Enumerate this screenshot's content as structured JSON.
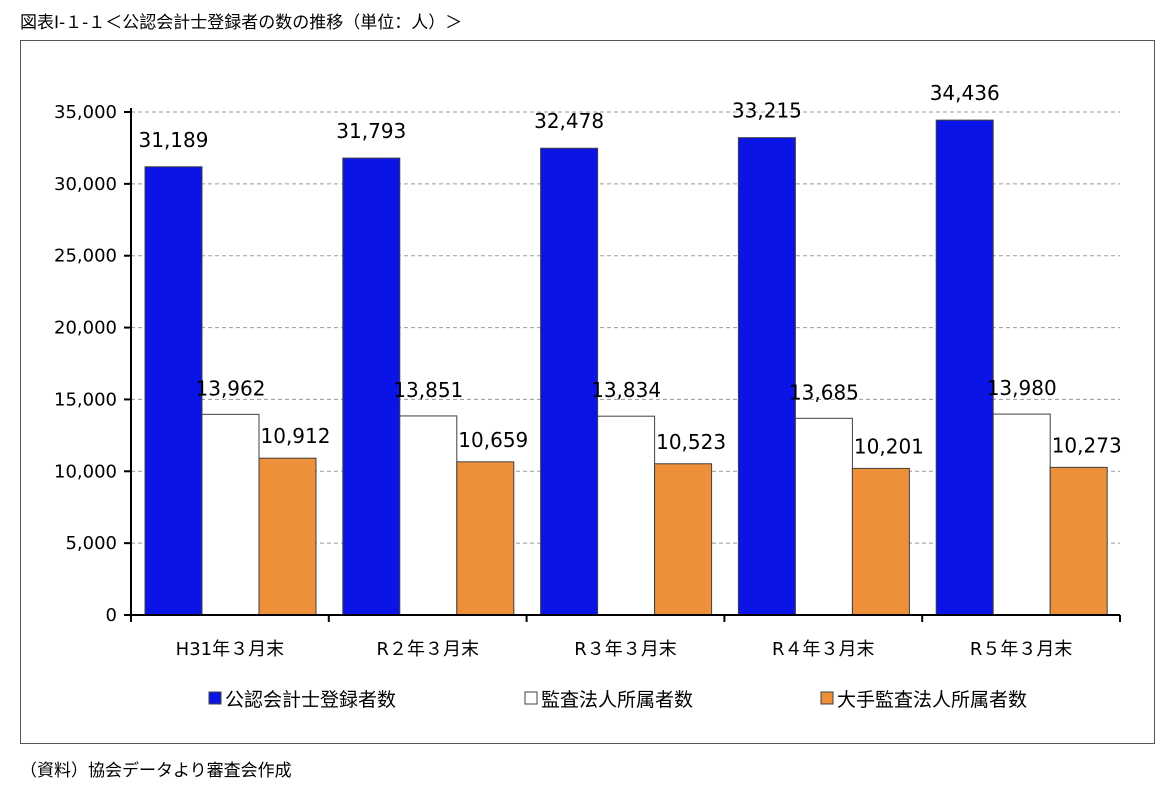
{
  "figure_title": "図表Ⅰ-１-１＜公認会計士登録者の数の推移（単位：人）＞",
  "source_note": "（資料）協会データより審査会作成",
  "colors": {
    "registered": "#0a14e6",
    "audit_firm": "#ffffff",
    "large_firm": "#ee8f3a",
    "gridline": "#9a9a9a",
    "bar_outline": "#404040"
  },
  "chart_data": {
    "type": "bar",
    "title": "",
    "xlabel": "",
    "ylabel": "",
    "categories": [
      "H31年３月末",
      "R２年３月末",
      "R３年３月末",
      "R４年３月末",
      "R５年３月末"
    ],
    "series": [
      {
        "name": "公認会計士登録者数",
        "values": [
          31189,
          31793,
          32478,
          33215,
          34436
        ]
      },
      {
        "name": "監査法人所属者数",
        "values": [
          13962,
          13851,
          13834,
          13685,
          13980
        ]
      },
      {
        "name": "大手監査法人所属者数",
        "values": [
          10912,
          10659,
          10523,
          10201,
          10273
        ]
      }
    ],
    "data_labels": [
      [
        "31,189",
        "31,793",
        "32,478",
        "33,215",
        "34,436"
      ],
      [
        "13,962",
        "13,851",
        "13,834",
        "13,685",
        "13,980"
      ],
      [
        "10,912",
        "10,659",
        "10,523",
        "10,201",
        "10,273"
      ]
    ],
    "yticks": [
      "0",
      "5,000",
      "10,000",
      "15,000",
      "20,000",
      "25,000",
      "30,000",
      "35,000"
    ],
    "ylim": [
      0,
      35000
    ],
    "grid": "horizontal dashed",
    "legend": "bottom"
  }
}
